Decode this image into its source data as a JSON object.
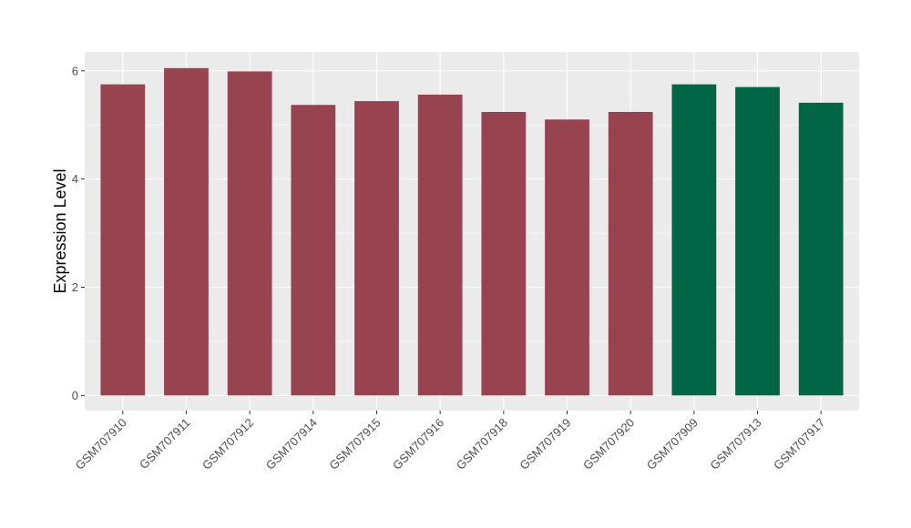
{
  "chart_data": {
    "type": "bar",
    "title": "",
    "xlabel": "",
    "ylabel": "Expression Level",
    "categories": [
      "GSM707910",
      "GSM707911",
      "GSM707912",
      "GSM707914",
      "GSM707915",
      "GSM707916",
      "GSM707918",
      "GSM707919",
      "GSM707920",
      "GSM707909",
      "GSM707913",
      "GSM707917"
    ],
    "values": [
      5.75,
      6.05,
      5.99,
      5.37,
      5.44,
      5.56,
      5.24,
      5.1,
      5.24,
      5.75,
      5.7,
      5.41
    ],
    "bar_colors": [
      "#984350",
      "#984350",
      "#984350",
      "#984350",
      "#984350",
      "#984350",
      "#984350",
      "#984350",
      "#984350",
      "#006645",
      "#006645",
      "#006645"
    ],
    "yticks": [
      0,
      2,
      4,
      6
    ],
    "ylim": [
      -0.28,
      6.35
    ],
    "grid": true,
    "legend": "none",
    "colors": {
      "panel_background": "#ebebeb",
      "gridline": "#ffffff",
      "tick_text": "#4d4d4d",
      "axis_title": "#000000"
    }
  }
}
